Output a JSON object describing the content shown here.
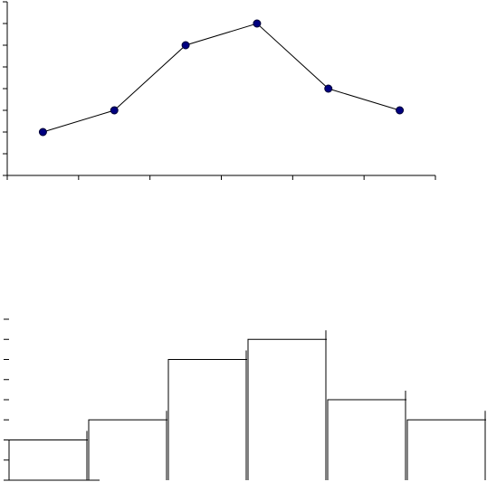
{
  "chart_data": [
    {
      "type": "line",
      "categories": [
        null,
        null,
        null,
        null,
        null,
        null
      ],
      "series": [
        {
          "color": "#000080",
          "values": [
            2,
            3,
            6,
            7,
            4,
            3
          ]
        }
      ],
      "ylim": [
        0,
        8
      ],
      "yticks": [
        0,
        1,
        2,
        3,
        4,
        5,
        6,
        7,
        8
      ]
    },
    {
      "type": "bar",
      "categories": [
        null,
        null,
        null,
        null,
        null,
        null
      ],
      "values": [
        2,
        3,
        6,
        7,
        4,
        3
      ],
      "color": "#000000",
      "ylim": [
        0,
        8
      ],
      "yticks": [
        0,
        1,
        2,
        3,
        4,
        5,
        6,
        7,
        8
      ]
    }
  ]
}
